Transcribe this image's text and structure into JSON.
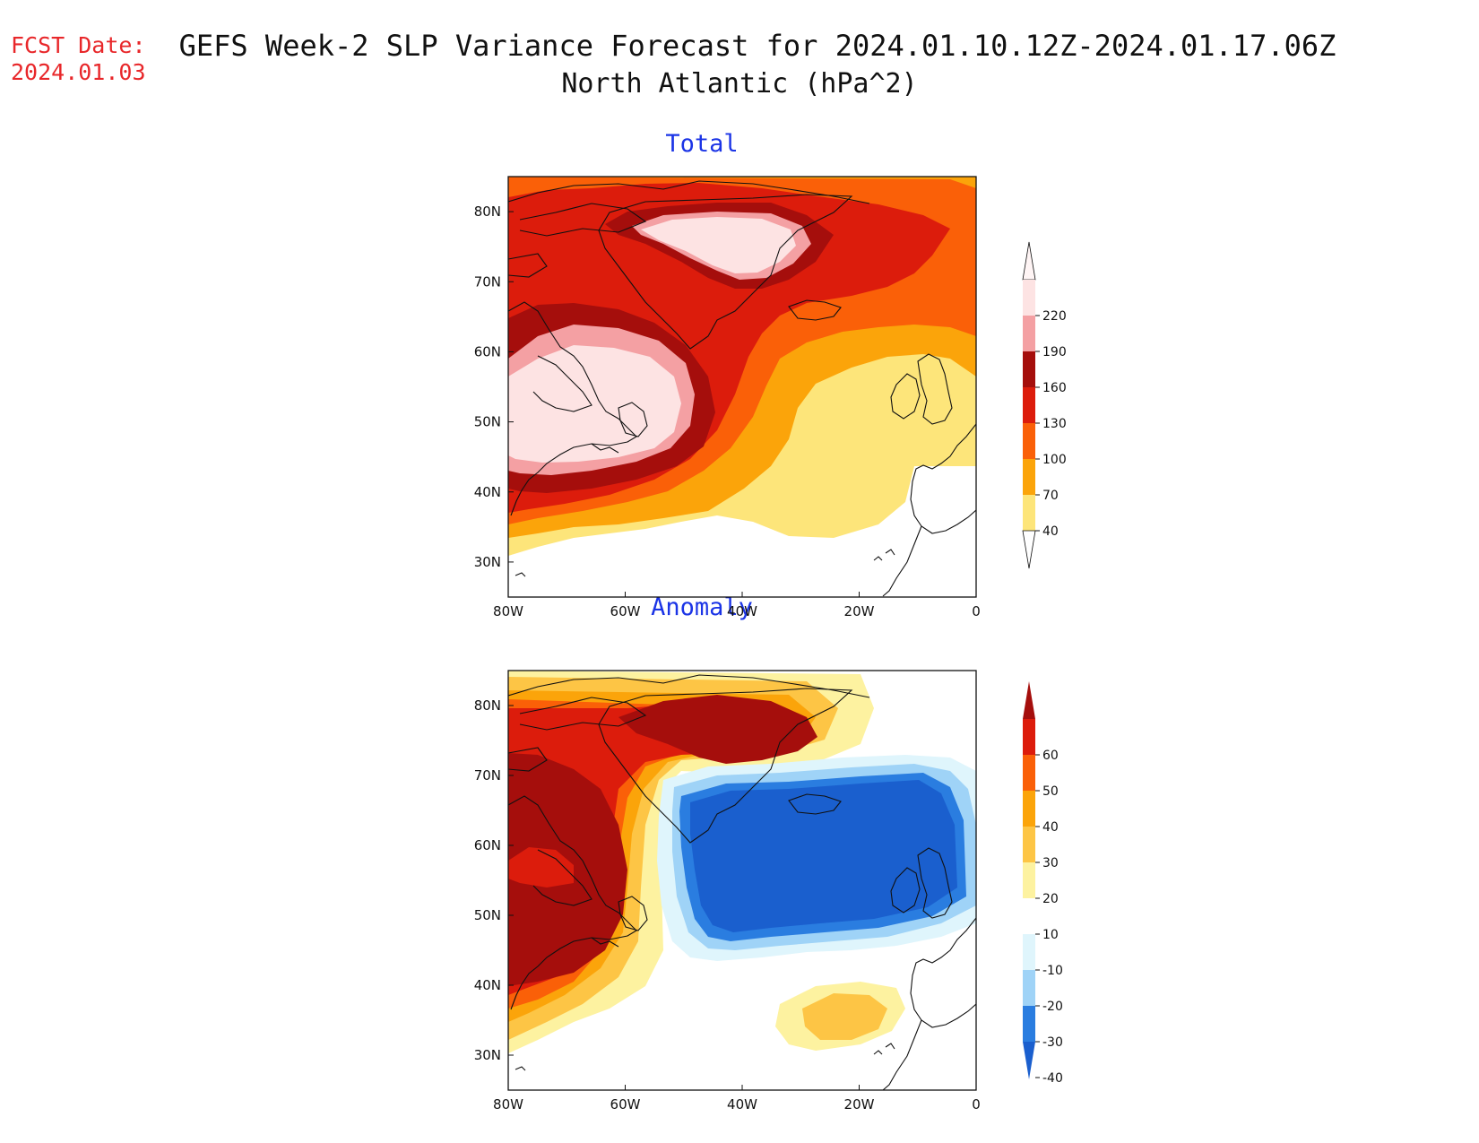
{
  "header": {
    "fcst_label": "FCST Date:",
    "fcst_date": "2024.01.03",
    "title_line1": "GEFS Week-2 SLP Variance Forecast for 2024.01.10.12Z-2024.01.17.06Z",
    "title_line2": "North Atlantic (hPa^2)"
  },
  "axes": {
    "lat_labels": [
      "80N",
      "70N",
      "60N",
      "50N",
      "40N",
      "30N"
    ],
    "lon_labels": [
      "80W",
      "60W",
      "40W",
      "20W",
      "0"
    ]
  },
  "panels": [
    {
      "title": "Total",
      "colorbar": {
        "levels": [
          "220",
          "190",
          "160",
          "130",
          "100",
          "70",
          "40"
        ],
        "colors": [
          "#fde3e3",
          "#f4a0a3",
          "#a50e0c",
          "#dc1c0c",
          "#fa6008",
          "#fba40a",
          "#fde57a"
        ]
      }
    },
    {
      "title": "Anomaly",
      "colorbar": {
        "levels": [
          "60",
          "50",
          "40",
          "30",
          "20",
          "10",
          "-10",
          "-20",
          "-30",
          "-40"
        ],
        "colors": [
          "#a50e0c",
          "#dc1c0c",
          "#fa6008",
          "#fba40a",
          "#fdc545",
          "#fdf2a0",
          "#ffffff",
          "#dff5fc",
          "#9fd3f7",
          "#2a7de0",
          "#1a5fce"
        ]
      }
    }
  ]
}
